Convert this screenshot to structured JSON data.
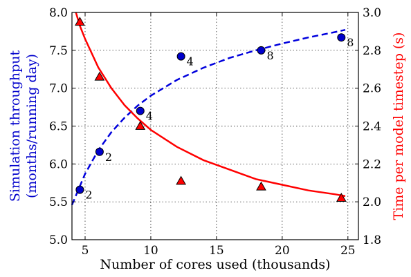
{
  "chart_data": {
    "type": "scatter",
    "title": "",
    "xlabel": "Number of cores used (thousands)",
    "ylabel_left": "Simulation throughput\n(months/running day)",
    "ylabel_right": "Time per model timestep (s)",
    "xlim": [
      4,
      25.8
    ],
    "ylim_left": [
      5.0,
      8.0
    ],
    "ylim_right": [
      1.8,
      3.0
    ],
    "x_ticks": [
      5,
      10,
      15,
      20,
      25
    ],
    "y_left_ticks": [
      5.0,
      5.5,
      6.0,
      6.5,
      7.0,
      7.5,
      8.0
    ],
    "y_right_ticks": [
      1.8,
      2.0,
      2.2,
      2.4,
      2.6,
      2.8,
      3.0
    ],
    "grid": true,
    "series": [
      {
        "axis": "left",
        "marker": "circle",
        "color": "#0000cc",
        "x": [
          4.6,
          6.1,
          9.2,
          12.3,
          18.4,
          24.5
        ],
        "y": [
          5.66,
          6.16,
          6.7,
          7.42,
          7.5,
          7.67
        ],
        "labels": [
          "2",
          "2",
          "4",
          "4",
          "8",
          "8"
        ]
      },
      {
        "axis": "right",
        "marker": "triangle",
        "color": "#ff0000",
        "x": [
          4.6,
          6.1,
          9.2,
          12.3,
          18.4,
          24.5
        ],
        "y": [
          2.95,
          2.66,
          2.4,
          2.11,
          2.08,
          2.02
        ]
      }
    ],
    "fits": [
      {
        "axis": "left",
        "style": "dashed",
        "color": "#0000dd",
        "x": [
          4.0,
          5.0,
          6.0,
          7.0,
          8.0,
          9.0,
          10.0,
          12.0,
          14.0,
          16.0,
          18.0,
          20.0,
          22.0,
          24.0,
          24.8
        ],
        "y": [
          5.46,
          5.87,
          6.18,
          6.42,
          6.61,
          6.77,
          6.9,
          7.11,
          7.27,
          7.4,
          7.5,
          7.59,
          7.67,
          7.74,
          7.77
        ]
      },
      {
        "axis": "right",
        "style": "solid",
        "color": "#ff0000",
        "x": [
          4.3,
          4.6,
          5.0,
          6.0,
          7.0,
          8.0,
          9.0,
          10.0,
          12.0,
          14.0,
          16.0,
          18.0,
          20.0,
          22.0,
          24.0,
          24.8
        ],
        "y": [
          3.0,
          2.93,
          2.86,
          2.71,
          2.6,
          2.51,
          2.44,
          2.38,
          2.29,
          2.22,
          2.17,
          2.12,
          2.09,
          2.06,
          2.04,
          2.03
        ]
      }
    ]
  }
}
